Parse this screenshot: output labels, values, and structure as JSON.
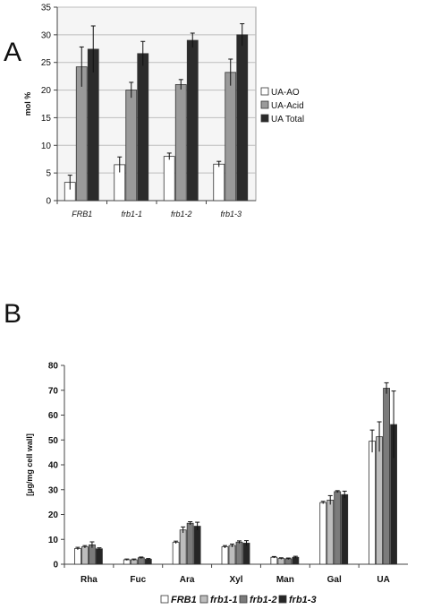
{
  "panel_labels": {
    "a": "A",
    "b": "B"
  },
  "chart_data": [
    {
      "type": "bar",
      "categories": [
        "FRB1",
        "frb1-1",
        "frb1-2",
        "frb1-3"
      ],
      "series": [
        {
          "name": "UA-AO",
          "color": "#ffffff",
          "values": [
            3.3,
            6.5,
            8.0,
            6.6
          ],
          "errors": [
            1.3,
            1.4,
            0.6,
            0.5
          ]
        },
        {
          "name": "UA-Acid",
          "color": "#9a9a9a",
          "values": [
            24.2,
            20.0,
            21.0,
            23.2
          ],
          "errors": [
            3.6,
            1.4,
            0.9,
            2.4
          ]
        },
        {
          "name": "UA Total",
          "color": "#2b2b2b",
          "values": [
            27.4,
            26.6,
            29.0,
            30.0
          ],
          "errors": [
            4.2,
            2.2,
            1.3,
            2.0
          ]
        }
      ],
      "xlabel": "",
      "ylabel": "mol %",
      "ylim": [
        0,
        35
      ],
      "yticks": [
        0,
        5,
        10,
        15,
        20,
        25,
        30,
        35
      ],
      "grid": true,
      "legend_position": "right"
    },
    {
      "type": "bar",
      "categories": [
        "Rha",
        "Fuc",
        "Ara",
        "Xyl",
        "Man",
        "Gal",
        "UA"
      ],
      "series": [
        {
          "name": "FRB1",
          "color": "#ffffff",
          "values": [
            6.3,
            1.8,
            8.8,
            7.0,
            2.8,
            24.8,
            49.5
          ],
          "errors": [
            0.5,
            0.3,
            0.5,
            0.5,
            0.3,
            0.5,
            4.5
          ]
        },
        {
          "name": "frb1-1",
          "color": "#bdbdbd",
          "values": [
            7.0,
            1.8,
            13.8,
            7.5,
            2.3,
            25.8,
            51.3
          ],
          "errors": [
            0.5,
            0.3,
            1.2,
            0.6,
            0.3,
            1.8,
            6.0
          ]
        },
        {
          "name": "frb1-2",
          "color": "#7b7b7b",
          "values": [
            7.8,
            2.6,
            16.5,
            8.9,
            2.2,
            29.2,
            70.8
          ],
          "errors": [
            1.2,
            0.3,
            0.6,
            0.5,
            0.3,
            0.4,
            2.2
          ]
        },
        {
          "name": "frb1-3",
          "color": "#262626",
          "values": [
            6.2,
            2.0,
            15.3,
            8.5,
            2.8,
            28.0,
            56.2
          ],
          "errors": [
            0.4,
            0.3,
            1.6,
            1.0,
            0.4,
            1.4,
            13.5
          ]
        }
      ],
      "xlabel": "",
      "ylabel": "[µg/mg cell wall]",
      "ylim": [
        0,
        80
      ],
      "yticks": [
        0,
        10,
        20,
        30,
        40,
        50,
        60,
        70,
        80
      ],
      "grid": false,
      "legend_position": "bottom"
    }
  ]
}
